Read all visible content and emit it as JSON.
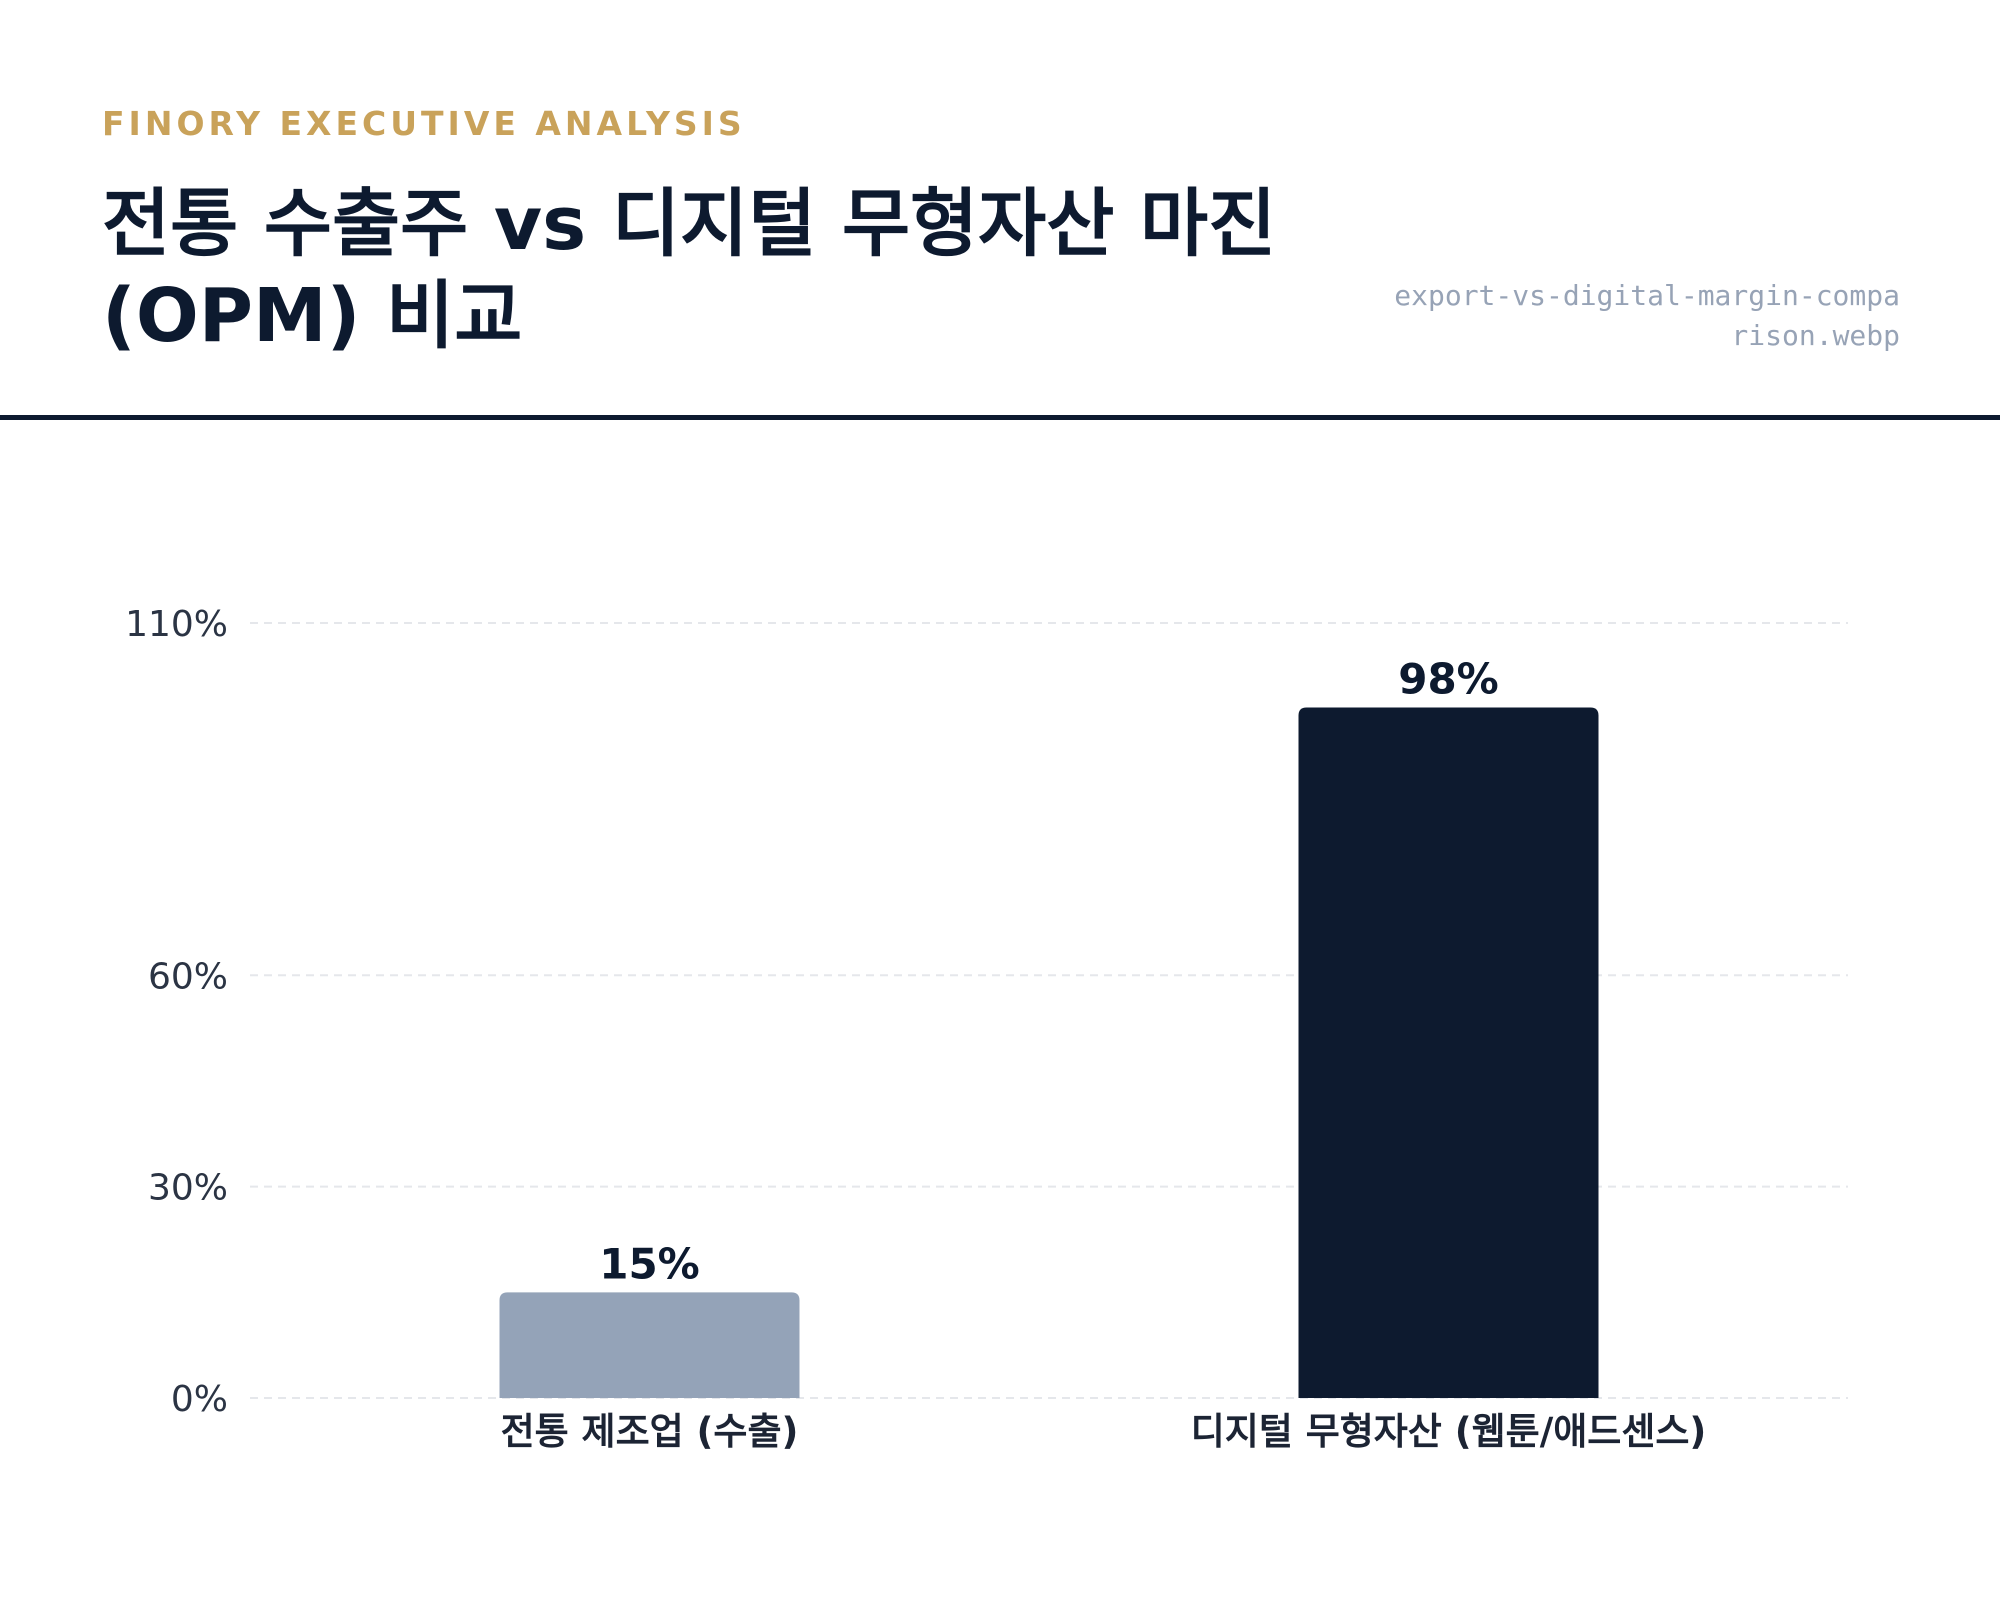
{
  "header": {
    "eyebrow": "FINORY EXECUTIVE ANALYSIS",
    "title": "전통 수출주 vs 디지털 무형자산 마진 (OPM) 비교",
    "filename": "export-vs-digital-margin-comparison.webp"
  },
  "chart_data": {
    "type": "bar",
    "title": "전통 수출주 vs 디지털 무형자산 마진 (OPM) 비교",
    "categories": [
      "전통 제조업 (수출)",
      "디지털 무형자산 (웹툰/애드센스)"
    ],
    "values": [
      15,
      98
    ],
    "value_labels": [
      "15%",
      "98%"
    ],
    "bar_colors": [
      "#94a3b8",
      "#0d1a2f"
    ],
    "y_ticks": [
      0,
      30,
      60,
      110
    ],
    "y_tick_labels": [
      "0%",
      "30%",
      "60%",
      "110%"
    ],
    "ylim": [
      0,
      110
    ],
    "grid": true,
    "legend": "none",
    "xlabel": "",
    "ylabel": ""
  },
  "colors": {
    "accent": "#c9a25a",
    "navy": "#0d1a2f",
    "muted": "#97a3b6",
    "grid": "#e5e7eb"
  }
}
